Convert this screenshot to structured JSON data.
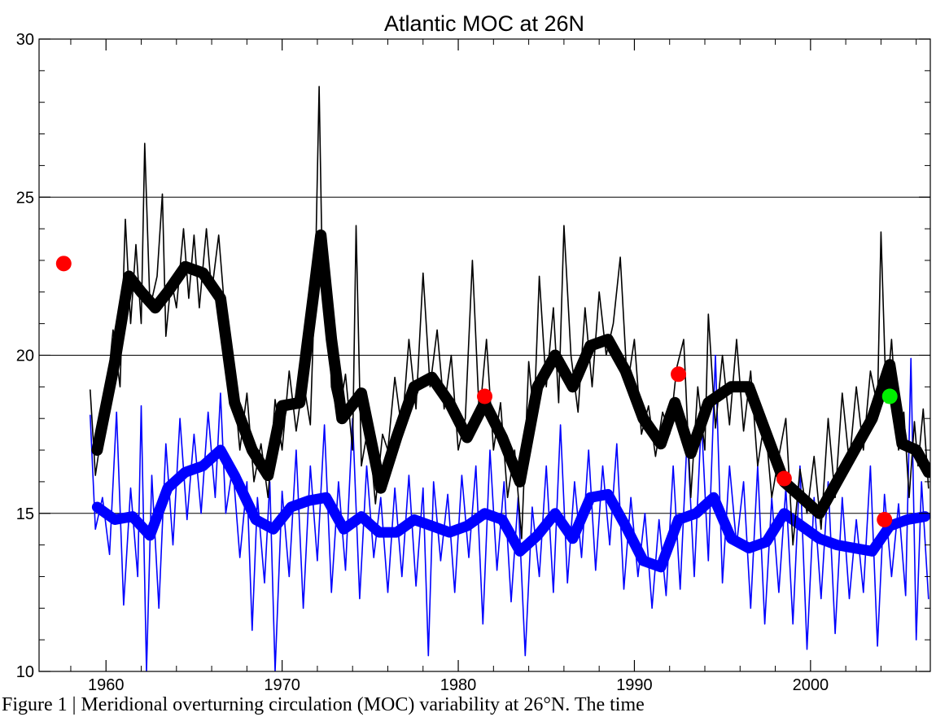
{
  "chart_data": {
    "type": "line",
    "title": "Atlantic MOC at 26N",
    "xlabel": "",
    "ylabel": "",
    "xlim": [
      1956.2,
      2006.8
    ],
    "ylim": [
      10,
      30
    ],
    "x_ticks": [
      1960,
      1970,
      1980,
      1990,
      2000
    ],
    "y_ticks": [
      10,
      15,
      20,
      25,
      30
    ],
    "reference_lines": [
      15,
      20,
      25
    ],
    "grid": false,
    "colors": {
      "upper": "#000000",
      "lower": "#0000ff",
      "obs": "#ff0000",
      "obs_latest": "#00ee00"
    },
    "series": [
      {
        "smooth": true,
        "color": "#000000",
        "x": [
          1959.5,
          1960.5,
          1961.3,
          1962.0,
          1962.8,
          1963.5,
          1964.5,
          1965.5,
          1966.5,
          1967.3,
          1968.3,
          1969.2,
          1970.0,
          1971.0,
          1971.8,
          1972.2,
          1972.8,
          1973.4,
          1974.5,
          1975.6,
          1976.5,
          1977.5,
          1978.5,
          1979.5,
          1980.5,
          1981.5,
          1982.5,
          1983.5,
          1984.5,
          1985.5,
          1986.5,
          1987.5,
          1988.5,
          1989.5,
          1990.5,
          1991.5,
          1992.3,
          1993.2,
          1994.2,
          1995.5,
          1996.5,
          1997.5,
          1998.5,
          1999.5,
          2000.5,
          2001.5,
          2002.5,
          2003.5,
          2004.5,
          2005.2,
          2006.0,
          2006.7
        ],
        "values": [
          17.0,
          19.8,
          22.5,
          22.0,
          21.5,
          22.0,
          22.8,
          22.6,
          21.8,
          18.5,
          17.0,
          16.2,
          18.4,
          18.5,
          22.0,
          23.8,
          20.5,
          18.0,
          18.8,
          15.8,
          17.4,
          19.0,
          19.3,
          18.5,
          17.4,
          18.5,
          17.4,
          16.0,
          19.0,
          20.0,
          19.0,
          20.3,
          20.5,
          19.5,
          18.0,
          17.2,
          18.5,
          16.9,
          18.5,
          19.0,
          19.0,
          17.5,
          16.0,
          15.5,
          15.0,
          16.0,
          17.0,
          18.0,
          19.7,
          17.2,
          17.0,
          16.3
        ]
      },
      {
        "smooth": true,
        "color": "#0000ff",
        "x": [
          1959.5,
          1960.5,
          1961.5,
          1962.5,
          1963.5,
          1964.5,
          1965.5,
          1966.5,
          1967.3,
          1968.5,
          1969.5,
          1970.5,
          1971.5,
          1972.5,
          1973.5,
          1974.5,
          1975.5,
          1976.5,
          1977.5,
          1978.5,
          1979.5,
          1980.5,
          1981.5,
          1982.5,
          1983.5,
          1984.5,
          1985.5,
          1986.5,
          1987.5,
          1988.5,
          1989.5,
          1990.5,
          1991.5,
          1992.5,
          1993.5,
          1994.5,
          1995.5,
          1996.5,
          1997.5,
          1998.5,
          1999.5,
          2000.5,
          2001.5,
          2002.5,
          2003.5,
          2004.5,
          2005.5,
          2006.5
        ],
        "values": [
          15.2,
          14.8,
          14.9,
          14.3,
          15.8,
          16.3,
          16.5,
          17.0,
          16.2,
          14.8,
          14.5,
          15.2,
          15.4,
          15.5,
          14.5,
          14.9,
          14.4,
          14.4,
          14.8,
          14.6,
          14.4,
          14.6,
          15.0,
          14.8,
          13.8,
          14.3,
          15.0,
          14.2,
          15.5,
          15.6,
          14.6,
          13.5,
          13.3,
          14.8,
          15.0,
          15.5,
          14.2,
          13.9,
          14.1,
          15.0,
          14.6,
          14.2,
          14.0,
          13.9,
          13.8,
          14.6,
          14.8,
          14.9
        ]
      },
      {
        "smooth": false,
        "color": "#000000",
        "x": [
          1959.1,
          1959.4,
          1960.0,
          1960.4,
          1960.8,
          1961.1,
          1961.4,
          1961.7,
          1962.0,
          1962.2,
          1962.5,
          1962.9,
          1963.2,
          1963.4,
          1963.7,
          1964.0,
          1964.4,
          1964.7,
          1965.0,
          1965.3,
          1965.7,
          1966.0,
          1966.4,
          1966.8,
          1967.2,
          1967.6,
          1968.0,
          1968.4,
          1968.8,
          1969.2,
          1969.6,
          1970.0,
          1970.4,
          1970.8,
          1971.2,
          1971.6,
          1971.9,
          1972.1,
          1972.3,
          1972.5,
          1972.8,
          1973.2,
          1973.6,
          1974.0,
          1974.2,
          1974.5,
          1974.9,
          1975.3,
          1975.7,
          1976.0,
          1976.4,
          1976.8,
          1977.2,
          1977.6,
          1978.0,
          1978.4,
          1978.8,
          1979.2,
          1979.6,
          1980.0,
          1980.4,
          1980.8,
          1981.2,
          1981.6,
          1982.0,
          1982.4,
          1982.8,
          1983.2,
          1983.6,
          1984.0,
          1984.3,
          1984.6,
          1985.0,
          1985.4,
          1985.7,
          1986.0,
          1986.4,
          1986.8,
          1987.2,
          1987.6,
          1988.0,
          1988.4,
          1988.8,
          1989.2,
          1989.6,
          1990.0,
          1990.4,
          1990.8,
          1991.2,
          1991.6,
          1992.0,
          1992.4,
          1992.8,
          1993.2,
          1993.6,
          1994.0,
          1994.2,
          1994.6,
          1995.0,
          1995.4,
          1995.8,
          1996.2,
          1996.6,
          1997.0,
          1997.4,
          1997.8,
          1998.2,
          1998.6,
          1999.0,
          1999.4,
          1999.8,
          2000.2,
          2000.6,
          2001.0,
          2001.4,
          2001.8,
          2002.2,
          2002.6,
          2003.0,
          2003.4,
          2003.8,
          2004.0,
          2004.3,
          2004.6,
          2005.0,
          2005.3,
          2005.6,
          2005.9,
          2006.1,
          2006.4,
          2006.7
        ],
        "values": [
          18.9,
          16.2,
          18.5,
          20.8,
          19.0,
          24.3,
          21.0,
          23.5,
          21.0,
          26.7,
          21.5,
          22.5,
          25.1,
          20.6,
          22.4,
          21.5,
          24.0,
          21.8,
          23.8,
          21.5,
          24.0,
          22.0,
          23.8,
          21.0,
          19.5,
          17.0,
          18.8,
          16.0,
          17.2,
          15.5,
          18.6,
          17.0,
          19.5,
          17.6,
          19.2,
          17.8,
          23.0,
          28.5,
          22.0,
          23.6,
          19.0,
          18.0,
          19.4,
          17.0,
          24.1,
          16.5,
          17.8,
          15.3,
          17.5,
          17.0,
          19.3,
          17.6,
          20.5,
          18.3,
          22.6,
          19.0,
          20.8,
          18.3,
          20.0,
          17.0,
          18.0,
          23.0,
          18.0,
          20.5,
          17.0,
          18.5,
          15.5,
          17.0,
          14.2,
          19.8,
          18.0,
          22.5,
          19.0,
          21.5,
          18.5,
          24.1,
          20.0,
          18.2,
          21.5,
          19.0,
          22.0,
          20.0,
          21.0,
          23.1,
          19.0,
          20.5,
          17.5,
          18.4,
          16.8,
          18.2,
          17.5,
          19.6,
          20.5,
          15.5,
          19.0,
          17.0,
          21.3,
          17.7,
          20.0,
          17.8,
          20.5,
          17.6,
          19.5,
          16.5,
          18.0,
          15.5,
          16.8,
          18.0,
          14.0,
          16.4,
          15.0,
          16.8,
          14.5,
          18.0,
          15.5,
          18.8,
          16.6,
          19.0,
          17.0,
          19.5,
          18.4,
          23.9,
          18.5,
          20.5,
          17.0,
          18.2,
          15.5,
          17.9,
          16.5,
          18.3,
          15.8
        ]
      },
      {
        "smooth": false,
        "color": "#0000ff",
        "x": [
          1959.1,
          1959.4,
          1959.8,
          1960.2,
          1960.6,
          1961.0,
          1961.4,
          1961.8,
          1962.0,
          1962.3,
          1962.6,
          1963.0,
          1963.4,
          1963.8,
          1964.2,
          1964.6,
          1965.0,
          1965.4,
          1965.8,
          1966.2,
          1966.5,
          1966.8,
          1967.2,
          1967.6,
          1968.0,
          1968.3,
          1968.6,
          1969.0,
          1969.3,
          1969.6,
          1970.0,
          1970.4,
          1970.8,
          1971.2,
          1971.6,
          1972.0,
          1972.4,
          1972.8,
          1973.2,
          1973.6,
          1974.0,
          1974.4,
          1974.8,
          1975.2,
          1975.6,
          1976.0,
          1976.4,
          1976.8,
          1977.2,
          1977.6,
          1978.0,
          1978.3,
          1978.6,
          1979.0,
          1979.4,
          1979.8,
          1980.2,
          1980.6,
          1981.0,
          1981.4,
          1981.8,
          1982.2,
          1982.6,
          1983.0,
          1983.4,
          1983.8,
          1984.2,
          1984.6,
          1985.0,
          1985.4,
          1985.8,
          1986.2,
          1986.6,
          1987.0,
          1987.4,
          1987.8,
          1988.2,
          1988.6,
          1989.0,
          1989.4,
          1989.8,
          1990.2,
          1990.6,
          1991.0,
          1991.4,
          1991.8,
          1992.2,
          1992.6,
          1993.0,
          1993.4,
          1993.8,
          1994.2,
          1994.6,
          1995.0,
          1995.4,
          1995.8,
          1996.2,
          1996.6,
          1997.0,
          1997.4,
          1997.8,
          1998.2,
          1998.6,
          1999.0,
          1999.4,
          1999.8,
          2000.2,
          2000.6,
          2001.0,
          2001.4,
          2001.8,
          2002.2,
          2002.6,
          2003.0,
          2003.4,
          2003.8,
          2004.2,
          2004.6,
          2005.0,
          2005.4,
          2005.7,
          2006.0,
          2006.3,
          2006.7
        ],
        "values": [
          18.1,
          14.5,
          15.5,
          13.7,
          18.2,
          12.1,
          15.8,
          13.0,
          18.4,
          10.0,
          16.2,
          12.0,
          17.2,
          14.0,
          18.0,
          14.8,
          17.5,
          15.0,
          18.2,
          15.5,
          18.8,
          15.0,
          16.5,
          13.6,
          16.0,
          11.3,
          15.5,
          12.8,
          16.0,
          10.0,
          15.7,
          13.0,
          17.0,
          12.0,
          16.5,
          13.5,
          17.8,
          12.5,
          16.0,
          13.2,
          18.0,
          12.3,
          16.5,
          13.6,
          15.5,
          12.5,
          15.8,
          13.0,
          16.2,
          12.7,
          15.8,
          10.5,
          16.0,
          13.5,
          15.6,
          12.5,
          16.2,
          13.6,
          16.5,
          11.5,
          17.0,
          13.2,
          16.0,
          12.2,
          15.5,
          10.5,
          15.2,
          13.0,
          16.5,
          12.5,
          17.8,
          12.8,
          16.0,
          13.6,
          17.0,
          13.2,
          16.5,
          14.0,
          17.2,
          12.6,
          15.5,
          13.0,
          15.0,
          12.0,
          14.8,
          12.4,
          16.5,
          12.6,
          17.5,
          13.0,
          18.0,
          13.5,
          20.0,
          12.8,
          16.5,
          14.0,
          16.0,
          12.0,
          16.5,
          11.5,
          15.5,
          12.5,
          15.8,
          11.5,
          16.5,
          10.7,
          15.5,
          12.3,
          16.0,
          11.2,
          15.5,
          12.3,
          14.8,
          12.5,
          16.5,
          10.8,
          15.6,
          13.0,
          15.3,
          12.4,
          19.9,
          11.0,
          16.0,
          12.3
        ]
      }
    ],
    "markers": [
      {
        "x": 1957.6,
        "y": 22.9,
        "color": "#ff0000"
      },
      {
        "x": 1981.5,
        "y": 18.7,
        "color": "#ff0000"
      },
      {
        "x": 1992.5,
        "y": 19.4,
        "color": "#ff0000"
      },
      {
        "x": 1998.5,
        "y": 16.1,
        "color": "#ff0000"
      },
      {
        "x": 2004.2,
        "y": 14.8,
        "color": "#ff0000"
      },
      {
        "x": 2004.5,
        "y": 18.7,
        "color": "#00ee00"
      }
    ]
  },
  "caption": "Figure 1 | Meridional overturning circulation (MOC) variability at 26°N. The time"
}
